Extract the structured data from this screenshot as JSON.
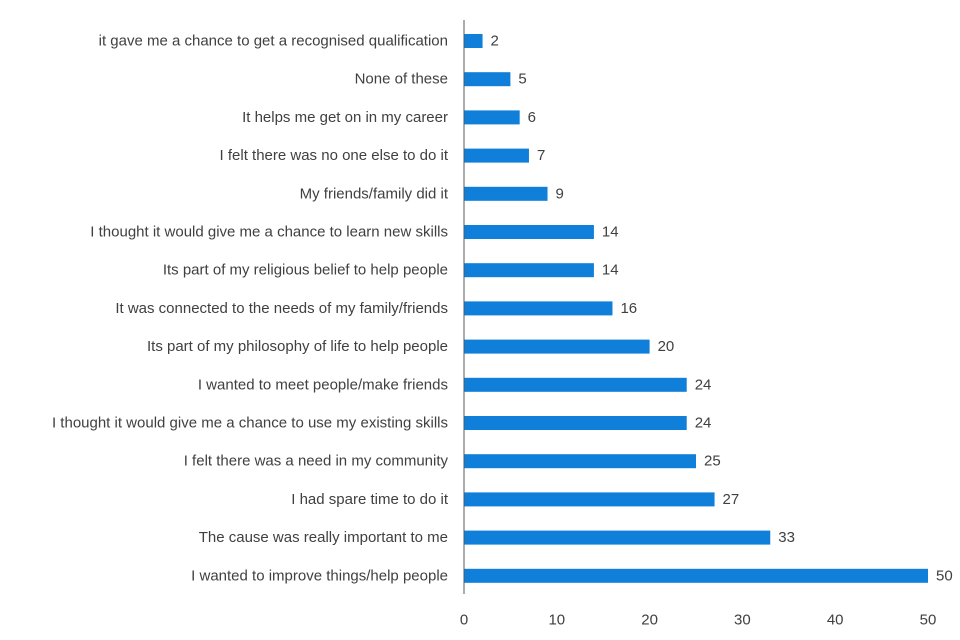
{
  "chart_data": {
    "type": "bar",
    "orientation": "horizontal",
    "categories": [
      "it gave me a chance to get a recognised qualification",
      "None of these",
      "It helps me get on in my career",
      "I felt there was no one else to do it",
      "My friends/family did it",
      "I thought it would give me a chance to learn new skills",
      "Its part of my religious belief to help people",
      "It was connected to the needs of my family/friends",
      "Its part of my philosophy of life to help people",
      "I wanted to meet people/make friends",
      "I thought it would give me a chance to use my existing skills",
      "I felt there was a need in my community",
      "I had spare time to do it",
      "The cause was really important to me",
      "I wanted to improve things/help people"
    ],
    "values": [
      2,
      5,
      6,
      7,
      9,
      14,
      14,
      16,
      20,
      24,
      24,
      25,
      27,
      33,
      50
    ],
    "value_labels": [
      "2",
      "5",
      "6",
      "7",
      "9",
      "14",
      "14",
      "16",
      "20",
      "24",
      "24",
      "25",
      "27",
      "33",
      "50"
    ],
    "xlim": [
      0,
      50
    ],
    "xticks": [
      "0",
      "10",
      "20",
      "30",
      "40",
      "50"
    ],
    "xtick_values": [
      0,
      10,
      20,
      30,
      40,
      50
    ],
    "grid": false,
    "legend": "none",
    "bar_color": "#0f7fd9",
    "axis_color": "#595959",
    "text_color": "#404040"
  }
}
